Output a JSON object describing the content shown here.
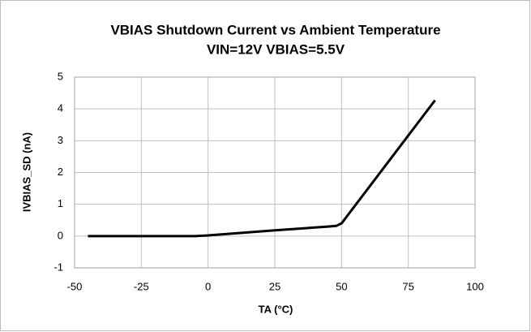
{
  "chart_data": {
    "type": "line",
    "title": "VBIAS Shutdown Current vs Ambient Temperature",
    "subtitle": "VIN=12V VBIAS=5.5V",
    "x_label": "TA (°C)",
    "y_label": "IVBIAS_SD (nA)",
    "x": [
      -45,
      -25,
      -5,
      0,
      25,
      45,
      48,
      50,
      85
    ],
    "series": [
      {
        "name": "IVBIAS_SD",
        "color": "#000000",
        "values": [
          0,
          0,
          0,
          0.02,
          0.18,
          0.3,
          0.32,
          0.4,
          4.27
        ]
      }
    ],
    "xlim": [
      -50,
      100
    ],
    "xticks": [
      -50,
      -25,
      0,
      25,
      50,
      75,
      100
    ],
    "ylim": [
      -1,
      5
    ],
    "yticks": [
      -1,
      0,
      1,
      2,
      3,
      4,
      5
    ],
    "grid": true
  }
}
